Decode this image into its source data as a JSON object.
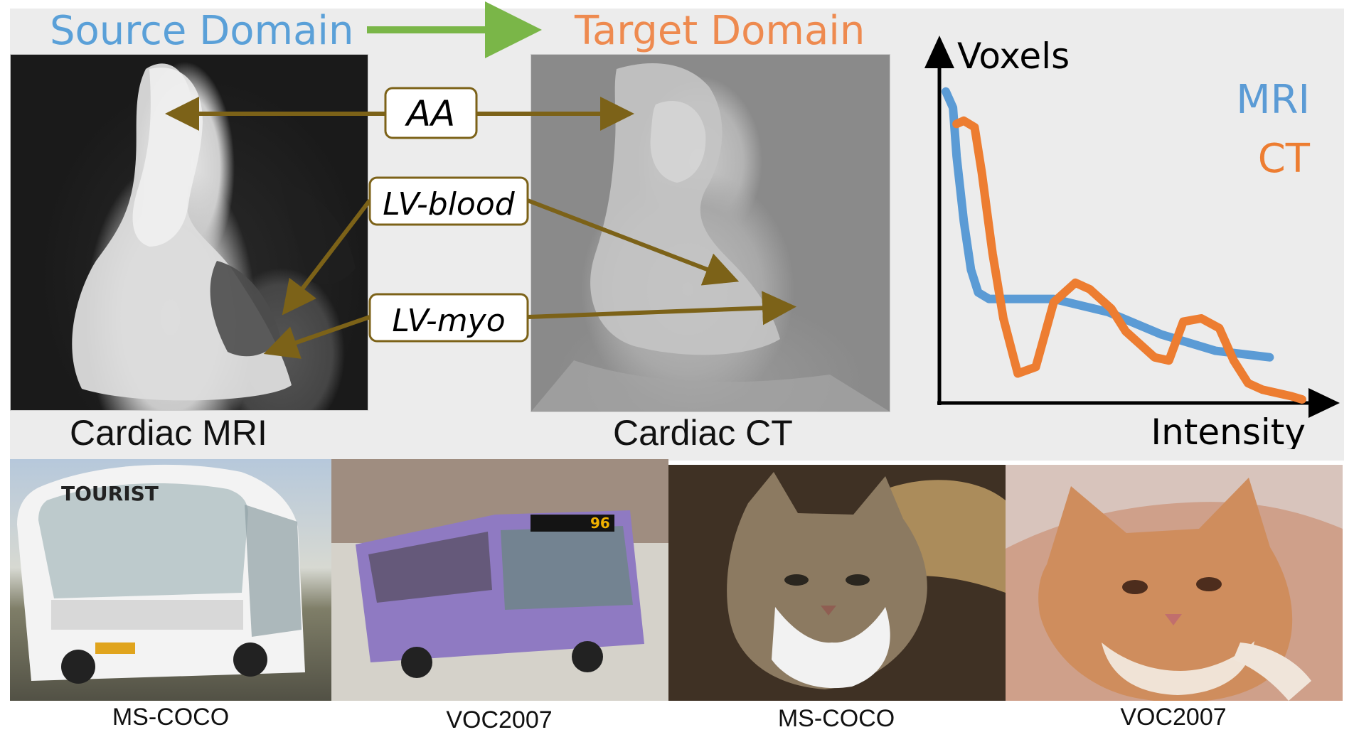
{
  "domains": {
    "source_label": "Source Domain",
    "target_label": "Target Domain",
    "source_color": "#5aa0d8",
    "target_color": "#ee8a4f",
    "arrow_color": "#7ab648"
  },
  "structures": {
    "label_aa": "AA",
    "label_lv_blood": "LV-blood",
    "label_lv_myo": "LV-myo",
    "arrow_color": "#7c6218"
  },
  "panels": {
    "mri_caption": "Cardiac MRI",
    "ct_caption": "Cardiac CT"
  },
  "chart": {
    "ylabel": "Voxels",
    "xlabel": "Intensity",
    "legend": [
      {
        "name": "MRI",
        "color": "#5b9bd5"
      },
      {
        "name": "CT",
        "color": "#ed7d31"
      }
    ]
  },
  "chart_data": {
    "type": "line",
    "xlabel": "Intensity",
    "ylabel": "Voxels",
    "grid": false,
    "legend_position": "top-right",
    "series": [
      {
        "name": "MRI",
        "color": "#5b9bd5",
        "x": [
          0.0,
          0.02,
          0.03,
          0.05,
          0.07,
          0.09,
          0.12,
          0.3,
          0.45,
          0.6,
          0.75,
          0.9
        ],
        "y": [
          0.95,
          0.9,
          0.75,
          0.55,
          0.4,
          0.33,
          0.31,
          0.31,
          0.27,
          0.2,
          0.15,
          0.13
        ]
      },
      {
        "name": "CT",
        "color": "#ed7d31",
        "x": [
          0.03,
          0.05,
          0.08,
          0.1,
          0.13,
          0.16,
          0.2,
          0.25,
          0.3,
          0.36,
          0.4,
          0.46,
          0.5,
          0.54,
          0.58,
          0.62,
          0.66,
          0.71,
          0.76,
          0.8,
          0.84,
          0.88,
          0.92,
          0.96,
          0.99
        ],
        "y": [
          0.85,
          0.86,
          0.84,
          0.7,
          0.45,
          0.25,
          0.08,
          0.1,
          0.3,
          0.36,
          0.34,
          0.28,
          0.21,
          0.17,
          0.13,
          0.12,
          0.24,
          0.25,
          0.22,
          0.12,
          0.05,
          0.03,
          0.02,
          0.01,
          0.0
        ]
      }
    ]
  },
  "datasets": {
    "caption_1": "MS-COCO",
    "caption_2": "VOC2007",
    "caption_3": "MS-COCO",
    "caption_4": "VOC2007"
  },
  "photo_texts": {
    "bus_sign": "TOURIST",
    "bus_route": "96"
  }
}
